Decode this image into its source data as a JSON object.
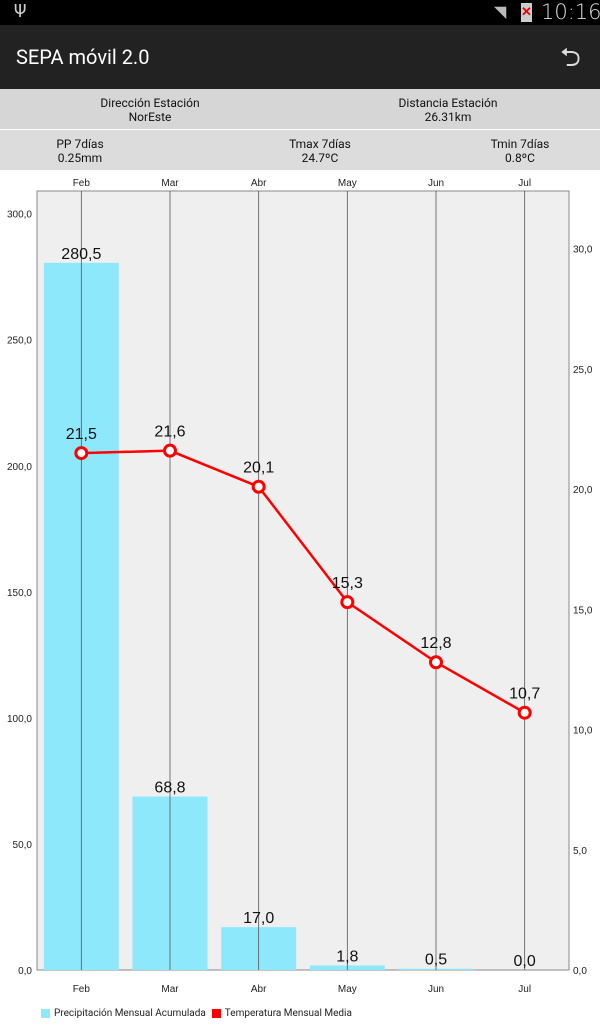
{
  "status": {
    "time": "10:16",
    "icons": [
      "usb-icon",
      "wifi-icon",
      "battery-alert-icon"
    ]
  },
  "appbar": {
    "title": "SEPA móvil 2.0",
    "back_icon": "undo-icon"
  },
  "info": {
    "direccion_label": "Dirección Estación",
    "direccion_value": "NorEste",
    "distancia_label": "Distancia Estación",
    "distancia_value": "26.31km",
    "pp_label": "PP 7días",
    "pp_value": "0.25mm",
    "tmax_label": "Tmax 7días",
    "tmax_value": "24.7ºC",
    "tmin_label": "Tmin 7días",
    "tmin_value": "0.8ºC"
  },
  "chart_data": {
    "type": "bar+line",
    "categories": [
      "Feb",
      "Mar",
      "Abr",
      "May",
      "Jun",
      "Jul"
    ],
    "series": [
      {
        "name": "Precipitación Mensual Acumulada",
        "type": "bar",
        "axis": "left",
        "color": "#8ee8fc",
        "values": [
          280.5,
          68.8,
          17.0,
          1.8,
          0.5,
          0.0
        ],
        "labels": [
          "280,5",
          "68,8",
          "17,0",
          "1,8",
          "0,5",
          "0,0"
        ]
      },
      {
        "name": "Temperatura Mensual Media",
        "type": "line",
        "axis": "right",
        "color": "#ff0000",
        "values": [
          21.5,
          21.6,
          20.1,
          15.3,
          12.8,
          10.7
        ],
        "labels": [
          "21,5",
          "21,6",
          "20,1",
          "15,3",
          "12,8",
          "10,7"
        ]
      }
    ],
    "left_axis": {
      "ticks": [
        "0,0",
        "50,0",
        "100,0",
        "150,0",
        "200,0",
        "250,0",
        "300,0"
      ],
      "tick_values": [
        0,
        50,
        100,
        150,
        200,
        250,
        300
      ],
      "ylim": [
        0,
        309
      ]
    },
    "right_axis": {
      "ticks": [
        "0,0",
        "5,0",
        "10,0",
        "15,0",
        "20,0",
        "25,0",
        "30,0"
      ],
      "tick_values": [
        0,
        5,
        10,
        15,
        20,
        25,
        30
      ],
      "ylim": [
        0,
        32.4
      ]
    },
    "grid": "vertical",
    "legend": "bottom-left"
  }
}
